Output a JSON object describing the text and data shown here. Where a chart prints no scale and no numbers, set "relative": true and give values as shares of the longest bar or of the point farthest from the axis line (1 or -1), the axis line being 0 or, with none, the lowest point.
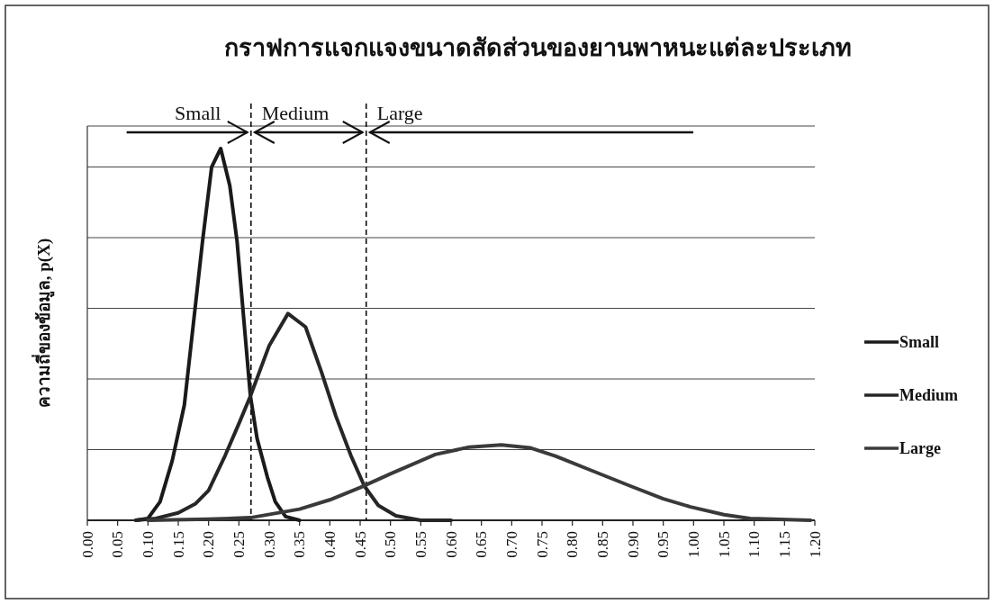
{
  "chart_data": {
    "type": "line",
    "title": "กราฟการแจกแจงขนาดสัดส่วนของยานพาหนะแต่ละประเภท",
    "ylabel": "ความถี่ของข้อมูล, p(X)",
    "relative": true,
    "xlim": [
      0,
      1.2
    ],
    "xticks": [
      {
        "value": 0,
        "label": "0.00"
      },
      {
        "value": 0.05,
        "label": "0.05"
      },
      {
        "value": 0.1,
        "label": "0.10"
      },
      {
        "value": 0.15,
        "label": "0.15"
      },
      {
        "value": 0.2,
        "label": "0.20"
      },
      {
        "value": 0.25,
        "label": "0.25"
      },
      {
        "value": 0.3,
        "label": "0.30"
      },
      {
        "value": 0.35,
        "label": "0.35"
      },
      {
        "value": 0.4,
        "label": "0.40"
      },
      {
        "value": 0.45,
        "label": "0.45"
      },
      {
        "value": 0.5,
        "label": "0.50"
      },
      {
        "value": 0.55,
        "label": "0.55"
      },
      {
        "value": 0.6,
        "label": "0.60"
      },
      {
        "value": 0.65,
        "label": "0.65"
      },
      {
        "value": 0.7,
        "label": "0.70"
      },
      {
        "value": 0.75,
        "label": "0.75"
      },
      {
        "value": 0.8,
        "label": "0.80"
      },
      {
        "value": 0.85,
        "label": "0.85"
      },
      {
        "value": 0.9,
        "label": "0.90"
      },
      {
        "value": 0.95,
        "label": "0.95"
      },
      {
        "value": 1,
        "label": "1.00"
      },
      {
        "value": 1.05,
        "label": "1.05"
      },
      {
        "value": 1.1,
        "label": "1.10"
      },
      {
        "value": 1.15,
        "label": "1.15"
      },
      {
        "value": 1.2,
        "label": "1.20"
      }
    ],
    "series": [
      {
        "name": "Small",
        "color": "#1a1a1a",
        "x": [
          0.08,
          0.1,
          0.12,
          0.14,
          0.16,
          0.19,
          0.205,
          0.22,
          0.235,
          0.247,
          0.269,
          0.28,
          0.297,
          0.31,
          0.327,
          0.35
        ],
        "values": [
          0,
          0.005,
          0.05,
          0.16,
          0.31,
          0.75,
          0.95,
          1,
          0.9,
          0.75,
          0.334,
          0.22,
          0.116,
          0.05,
          0.01,
          0
        ]
      },
      {
        "name": "Medium",
        "color": "#262626",
        "x": [
          0.08,
          0.113,
          0.15,
          0.178,
          0.2,
          0.227,
          0.25,
          0.269,
          0.3,
          0.331,
          0.36,
          0.386,
          0.41,
          0.435,
          0.457,
          0.48,
          0.509,
          0.55,
          0.6
        ],
        "values": [
          0,
          0.005,
          0.02,
          0.044,
          0.08,
          0.173,
          0.26,
          0.334,
          0.47,
          0.556,
          0.52,
          0.4,
          0.28,
          0.173,
          0.092,
          0.04,
          0.012,
          0,
          0
        ]
      },
      {
        "name": "Large",
        "color": "#3a3a3a",
        "x": [
          0.1,
          0.2,
          0.269,
          0.35,
          0.4,
          0.45,
          0.5,
          0.574,
          0.63,
          0.683,
          0.73,
          0.772,
          0.83,
          0.896,
          0.95,
          0.995,
          1.05,
          1.093,
          1.193
        ],
        "values": [
          0,
          0.003,
          0.007,
          0.03,
          0.055,
          0.088,
          0.125,
          0.177,
          0.197,
          0.203,
          0.195,
          0.173,
          0.135,
          0.092,
          0.058,
          0.036,
          0.015,
          0.005,
          0
        ]
      }
    ],
    "ref_lines": [
      {
        "axis": "x",
        "value": 0.27,
        "color": "#000000",
        "line_style": "dashed"
      },
      {
        "axis": "x",
        "value": 0.46,
        "color": "#000000",
        "line_style": "dashed"
      }
    ],
    "annotations": [
      "Small",
      "Medium",
      "Large"
    ],
    "grid": "y",
    "legend": "right",
    "marker": "none",
    "line_style": "solid"
  }
}
